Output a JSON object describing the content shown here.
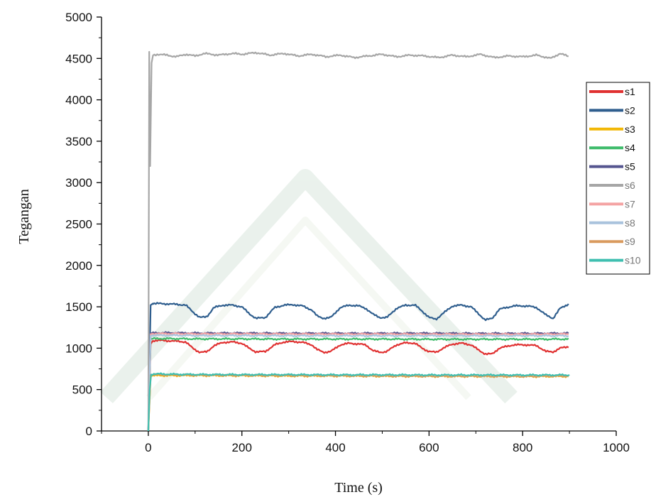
{
  "chart_data": {
    "type": "line",
    "title": "",
    "xlabel": "Time (s)",
    "ylabel": "Tegangan",
    "xlim": [
      -100,
      1000
    ],
    "ylim": [
      0,
      5000
    ],
    "xticks": [
      0,
      200,
      400,
      600,
      800,
      1000
    ],
    "yticks": [
      0,
      500,
      1000,
      1500,
      2000,
      2500,
      3000,
      3500,
      4000,
      4500,
      5000
    ],
    "x_tick_labels": [
      "0",
      "200",
      "400",
      "600",
      "800",
      "1000"
    ],
    "y_tick_labels": [
      "0",
      "500",
      "1000",
      "1500",
      "2000",
      "2500",
      "3000",
      "3500",
      "4000",
      "4500",
      "5000"
    ],
    "grid": false,
    "legend_position": "right",
    "series": [
      {
        "name": "s1",
        "color": "#e03131",
        "x": [
          0,
          5,
          10,
          20,
          40,
          60,
          80,
          95,
          110,
          125,
          140,
          160,
          180,
          200,
          215,
          230,
          250,
          270,
          290,
          310,
          330,
          350,
          360,
          375,
          390,
          410,
          430,
          450,
          465,
          480,
          495,
          510,
          530,
          550,
          570,
          585,
          600,
          615,
          630,
          650,
          670,
          690,
          705,
          720,
          735,
          750,
          780,
          810,
          830,
          850,
          865,
          880,
          900
        ],
        "y": [
          0,
          1050,
          1090,
          1095,
          1090,
          1085,
          1075,
          1000,
          950,
          955,
          1030,
          1070,
          1075,
          1060,
          1000,
          955,
          960,
          1040,
          1075,
          1080,
          1070,
          1040,
          985,
          950,
          960,
          1040,
          1060,
          1050,
          1040,
          970,
          950,
          960,
          1040,
          1065,
          1060,
          1000,
          960,
          950,
          1000,
          1050,
          1060,
          1040,
          980,
          930,
          930,
          1000,
          1040,
          1040,
          1030,
          960,
          955,
          1000,
          1020
        ]
      },
      {
        "name": "s2",
        "color": "#2f5e8e",
        "x": [
          0,
          5,
          10,
          20,
          40,
          60,
          80,
          95,
          110,
          125,
          140,
          160,
          180,
          200,
          215,
          230,
          250,
          270,
          290,
          310,
          330,
          350,
          360,
          375,
          390,
          410,
          430,
          450,
          465,
          480,
          495,
          510,
          530,
          550,
          570,
          585,
          600,
          615,
          630,
          650,
          670,
          690,
          705,
          720,
          735,
          750,
          780,
          810,
          830,
          850,
          865,
          880,
          900
        ],
        "y": [
          0,
          1520,
          1540,
          1540,
          1535,
          1530,
          1520,
          1440,
          1370,
          1380,
          1490,
          1520,
          1520,
          1500,
          1420,
          1360,
          1370,
          1490,
          1520,
          1525,
          1510,
          1460,
          1390,
          1360,
          1370,
          1490,
          1520,
          1510,
          1480,
          1410,
          1370,
          1370,
          1480,
          1520,
          1520,
          1450,
          1370,
          1350,
          1420,
          1510,
          1520,
          1500,
          1420,
          1340,
          1360,
          1470,
          1510,
          1510,
          1490,
          1400,
          1360,
          1480,
          1540
        ]
      },
      {
        "name": "s3",
        "color": "#f2b705",
        "x": [
          0,
          5,
          10,
          50,
          100,
          200,
          300,
          400,
          500,
          600,
          700,
          800,
          900
        ],
        "y": [
          0,
          660,
          670,
          670,
          670,
          668,
          665,
          665,
          662,
          660,
          660,
          658,
          660
        ]
      },
      {
        "name": "s4",
        "color": "#3dbb6a",
        "x": [
          0,
          5,
          10,
          50,
          100,
          200,
          300,
          400,
          500,
          600,
          700,
          800,
          900
        ],
        "y": [
          0,
          1110,
          1115,
          1115,
          1112,
          1112,
          1110,
          1110,
          1110,
          1108,
          1108,
          1108,
          1110
        ]
      },
      {
        "name": "s5",
        "color": "#55558f",
        "x": [
          0,
          5,
          10,
          50,
          100,
          200,
          300,
          400,
          500,
          600,
          700,
          800,
          900
        ],
        "y": [
          0,
          1180,
          1185,
          1185,
          1182,
          1182,
          1180,
          1180,
          1180,
          1180,
          1178,
          1178,
          1180
        ]
      },
      {
        "name": "s6",
        "color": "#a6a6a6",
        "x": [
          0,
          2,
          4,
          6,
          8,
          10,
          20,
          40,
          60,
          80,
          100,
          120,
          150,
          180,
          200,
          230,
          260,
          290,
          320,
          350,
          380,
          410,
          440,
          470,
          500,
          530,
          560,
          590,
          620,
          650,
          680,
          710,
          740,
          770,
          800,
          830,
          860,
          880,
          900
        ],
        "y": [
          0,
          4580,
          3200,
          4580,
          4300,
          4540,
          4550,
          4540,
          4520,
          4550,
          4530,
          4560,
          4540,
          4560,
          4550,
          4570,
          4540,
          4560,
          4530,
          4550,
          4520,
          4540,
          4510,
          4530,
          4550,
          4520,
          4540,
          4530,
          4510,
          4540,
          4520,
          4550,
          4510,
          4530,
          4520,
          4540,
          4500,
          4560,
          4520
        ]
      },
      {
        "name": "s7",
        "color": "#f4a3a3",
        "x": [
          0,
          5,
          10,
          50,
          100,
          200,
          300,
          400,
          500,
          600,
          700,
          800,
          900
        ],
        "y": [
          0,
          1170,
          1175,
          1175,
          1172,
          1172,
          1170,
          1170,
          1170,
          1168,
          1168,
          1168,
          1170
        ]
      },
      {
        "name": "s8",
        "color": "#a9c3dd",
        "x": [
          0,
          5,
          10,
          50,
          100,
          200,
          300,
          400,
          500,
          600,
          700,
          800,
          900
        ],
        "y": [
          0,
          1150,
          1155,
          1155,
          1152,
          1152,
          1150,
          1150,
          1150,
          1150,
          1150,
          1150,
          1150
        ]
      },
      {
        "name": "s9",
        "color": "#d99a5e",
        "x": [
          0,
          5,
          10,
          50,
          100,
          200,
          300,
          400,
          500,
          600,
          700,
          800,
          900
        ],
        "y": [
          0,
          675,
          680,
          678,
          675,
          672,
          670,
          668,
          665,
          662,
          662,
          660,
          665
        ]
      },
      {
        "name": "s10",
        "color": "#3fbfb0",
        "x": [
          0,
          3,
          6,
          10,
          50,
          100,
          200,
          300,
          400,
          500,
          600,
          700,
          800,
          900
        ],
        "y": [
          0,
          500,
          680,
          690,
          685,
          682,
          680,
          680,
          678,
          678,
          676,
          676,
          675,
          676
        ]
      }
    ]
  }
}
